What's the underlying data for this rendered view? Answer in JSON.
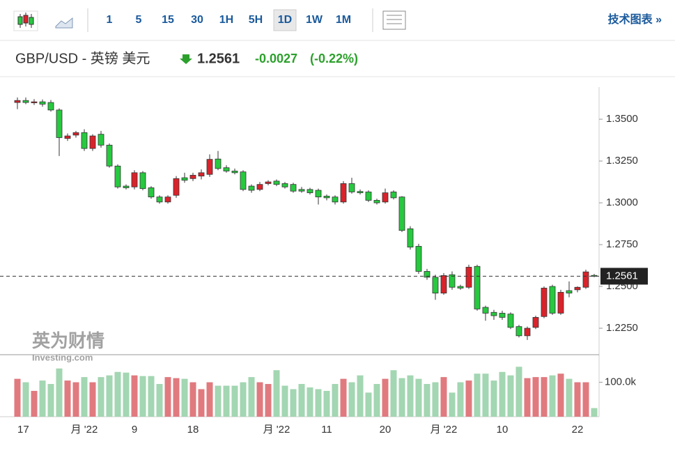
{
  "toolbar": {
    "intervals": [
      "1",
      "5",
      "15",
      "30",
      "1H",
      "5H",
      "1D",
      "1W",
      "1M"
    ],
    "active": "1D",
    "link": "技术图表 »"
  },
  "header": {
    "symbol": "GBP/USD - 英镑 美元",
    "price": 1.2561,
    "change": -0.0027,
    "change_pct": "(-0.22%)"
  },
  "watermark": {
    "brand": "英为财情",
    "site": "Investing.com"
  },
  "chart_data": {
    "type": "candlestick",
    "categories": [
      "17",
      null,
      null,
      null,
      null,
      null,
      null,
      null,
      "月 '22",
      null,
      null,
      null,
      null,
      null,
      "9",
      null,
      null,
      null,
      null,
      null,
      null,
      "18",
      null,
      null,
      null,
      null,
      null,
      null,
      null,
      null,
      null,
      "月 '22",
      null,
      null,
      null,
      null,
      null,
      "11",
      null,
      null,
      null,
      null,
      null,
      null,
      "20",
      null,
      null,
      null,
      null,
      null,
      null,
      "月 '22",
      null,
      null,
      null,
      null,
      null,
      null,
      "10",
      null,
      null,
      null,
      null,
      null,
      null,
      null,
      null,
      "22",
      null,
      null
    ],
    "open": [
      1.36,
      1.3612,
      1.3598,
      1.3604,
      1.36,
      1.3555,
      1.3385,
      1.3405,
      1.342,
      1.3325,
      1.341,
      1.3345,
      1.322,
      1.31,
      1.3095,
      1.318,
      1.309,
      1.3035,
      1.3005,
      1.3045,
      1.315,
      1.3145,
      1.316,
      1.317,
      1.3262,
      1.321,
      1.319,
      1.3185,
      1.31,
      1.308,
      1.3115,
      1.313,
      1.3115,
      1.311,
      1.308,
      1.308,
      1.3075,
      1.304,
      1.3035,
      1.3005,
      1.3115,
      1.3068,
      1.3065,
      1.3015,
      1.3005,
      1.3065,
      1.3035,
      1.2845,
      1.274,
      1.259,
      1.2555,
      1.246,
      1.257,
      1.25,
      1.2495,
      1.262,
      1.2375,
      1.2345,
      1.234,
      1.2335,
      1.226,
      1.2205,
      1.2255,
      1.232,
      1.25,
      1.234,
      1.2475,
      1.248,
      1.2495,
      1.2566
    ],
    "high": [
      1.363,
      1.363,
      1.362,
      1.3618,
      1.3615,
      1.3565,
      1.3415,
      1.343,
      1.344,
      1.341,
      1.343,
      1.3355,
      1.323,
      1.311,
      1.3195,
      1.319,
      1.31,
      1.3045,
      1.3045,
      1.316,
      1.318,
      1.318,
      1.32,
      1.329,
      1.331,
      1.3225,
      1.3205,
      1.3195,
      1.311,
      1.3125,
      1.3135,
      1.314,
      1.3125,
      1.312,
      1.3095,
      1.309,
      1.3085,
      1.305,
      1.3045,
      1.313,
      1.315,
      1.308,
      1.3075,
      1.3025,
      1.3085,
      1.3075,
      1.304,
      1.286,
      1.2755,
      1.2605,
      1.257,
      1.258,
      1.259,
      1.251,
      1.263,
      1.263,
      1.2385,
      1.236,
      1.2355,
      1.2345,
      1.227,
      1.226,
      1.2325,
      1.25,
      1.251,
      1.248,
      1.253,
      1.25,
      1.26,
      1.2575
    ],
    "low": [
      1.356,
      1.359,
      1.3585,
      1.3575,
      1.3545,
      1.328,
      1.337,
      1.339,
      1.331,
      1.331,
      1.333,
      1.321,
      1.3085,
      1.308,
      1.308,
      1.3075,
      1.3025,
      1.2995,
      1.2995,
      1.303,
      1.312,
      1.313,
      1.314,
      1.3155,
      1.3195,
      1.318,
      1.317,
      1.307,
      1.306,
      1.307,
      1.3105,
      1.31,
      1.3085,
      1.306,
      1.306,
      1.305,
      1.299,
      1.3015,
      1.299,
      1.2995,
      1.3055,
      1.305,
      1.3005,
      1.299,
      1.2995,
      1.302,
      1.2825,
      1.272,
      1.2575,
      1.254,
      1.242,
      1.245,
      1.248,
      1.248,
      1.2485,
      1.2355,
      1.2295,
      1.23,
      1.23,
      1.2245,
      1.2195,
      1.218,
      1.2245,
      1.231,
      1.233,
      1.233,
      1.2435,
      1.2465,
      1.2485,
      1.2555
    ],
    "close": [
      1.3612,
      1.36,
      1.3604,
      1.359,
      1.3555,
      1.339,
      1.34,
      1.342,
      1.3325,
      1.34,
      1.3345,
      1.322,
      1.3095,
      1.309,
      1.318,
      1.3085,
      1.3035,
      1.3005,
      1.3035,
      1.3145,
      1.3135,
      1.3165,
      1.318,
      1.326,
      1.3205,
      1.319,
      1.318,
      1.308,
      1.3075,
      1.311,
      1.3125,
      1.311,
      1.3095,
      1.307,
      1.307,
      1.306,
      1.3035,
      1.303,
      1.3005,
      1.3115,
      1.3065,
      1.306,
      1.3015,
      1.3,
      1.306,
      1.303,
      1.2835,
      1.2735,
      1.259,
      1.2555,
      1.246,
      1.2565,
      1.2495,
      1.249,
      1.2615,
      1.2365,
      1.234,
      1.2325,
      1.2315,
      1.2255,
      1.2205,
      1.225,
      1.2315,
      1.249,
      1.234,
      1.2465,
      1.246,
      1.2495,
      1.2587,
      1.2561
    ],
    "volume": [
      110000,
      100000,
      75000,
      105000,
      95000,
      140000,
      105000,
      100000,
      115000,
      100000,
      115000,
      120000,
      130000,
      128000,
      120000,
      118000,
      118000,
      95000,
      115000,
      112000,
      110000,
      100000,
      80000,
      100000,
      90000,
      90000,
      90000,
      100000,
      115000,
      100000,
      95000,
      135000,
      90000,
      80000,
      95000,
      85000,
      80000,
      75000,
      95000,
      110000,
      100000,
      120000,
      70000,
      95000,
      110000,
      135000,
      112000,
      120000,
      110000,
      95000,
      100000,
      115000,
      70000,
      100000,
      105000,
      125000,
      125000,
      105000,
      130000,
      120000,
      145000,
      112000,
      115000,
      115000,
      120000,
      125000,
      110000,
      100000,
      100000,
      25000
    ],
    "up_color": "#d9232b",
    "down_color": "#27c93f",
    "up_volume_color": "#e07a7f",
    "down_volume_color": "#a3d6b2",
    "ylim": [
      1.2096,
      1.3692
    ],
    "yticks": [
      {
        "value": 1.35,
        "label": "1.3500"
      },
      {
        "value": 1.325,
        "label": "1.3250"
      },
      {
        "value": 1.3,
        "label": "1.3000"
      },
      {
        "value": 1.275,
        "label": "1.2750"
      },
      {
        "value": 1.25,
        "label": "1.2500"
      },
      {
        "value": 1.225,
        "label": "1.2250"
      }
    ],
    "volume_ylim": [
      0,
      178000
    ],
    "volume_yticks": [
      {
        "value": 100000,
        "label": "100.0k"
      }
    ]
  }
}
